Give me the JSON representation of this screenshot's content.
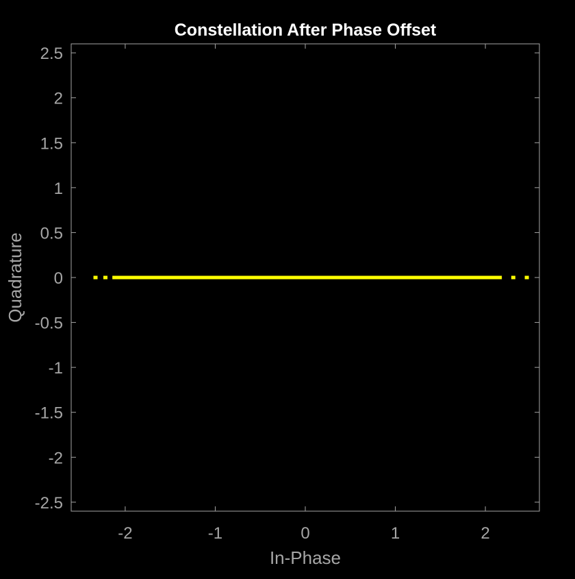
{
  "chart_data": {
    "type": "scatter",
    "title": "Constellation After Phase Offset",
    "xlabel": "In-Phase",
    "ylabel": "Quadrature",
    "xlim": [
      -2.6,
      2.6
    ],
    "ylim": [
      -2.6,
      2.6
    ],
    "x_ticks": [
      -2,
      -1,
      0,
      1,
      2
    ],
    "x_tick_labels": [
      "-2",
      "-1",
      "0",
      "1",
      "2"
    ],
    "y_ticks": [
      2.5,
      2,
      1.5,
      1,
      0.5,
      0,
      -0.5,
      -1,
      -1.5,
      -2,
      -2.5
    ],
    "y_tick_labels": [
      "2.5",
      "2",
      "1.5",
      "1",
      "0.5",
      "0",
      "-0.5",
      "-1",
      "-1.5",
      "-2",
      "-2.5"
    ],
    "grid": false,
    "series": [
      {
        "color": "#ffff00",
        "points": [
          {
            "x": -2.33,
            "y": 0
          },
          {
            "x": -2.22,
            "y": 0
          },
          {
            "x": -2.12,
            "y": 0
          },
          {
            "x": -1.6,
            "y": 0
          },
          {
            "x": -1.0,
            "y": 0
          },
          {
            "x": -0.5,
            "y": 0
          },
          {
            "x": 0.0,
            "y": 0
          },
          {
            "x": 0.5,
            "y": 0
          },
          {
            "x": 1.0,
            "y": 0
          },
          {
            "x": 1.5,
            "y": 0
          },
          {
            "x": 1.9,
            "y": 0
          },
          {
            "x": 2.16,
            "y": 0
          },
          {
            "x": 2.31,
            "y": 0
          },
          {
            "x": 2.46,
            "y": 0
          }
        ],
        "segments": [
          {
            "x0": -2.12,
            "x1": 2.16,
            "y": 0
          }
        ]
      }
    ],
    "colors": {
      "background": "#000000",
      "axes": "#a6a6a6",
      "title": "#ffffff"
    }
  }
}
